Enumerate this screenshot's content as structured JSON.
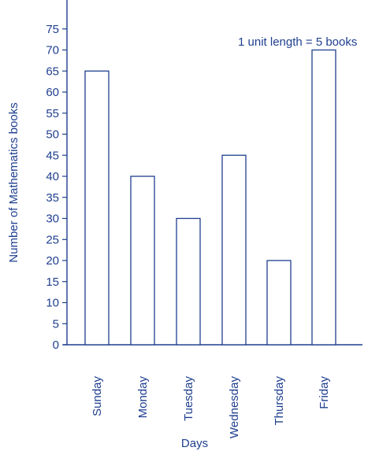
{
  "chart_data": {
    "type": "bar",
    "categories": [
      "Sunday",
      "Monday",
      "Tuesday",
      "Wednesday",
      "Thursday",
      "Friday"
    ],
    "values": [
      65,
      40,
      30,
      45,
      20,
      70
    ],
    "xlabel": "Days",
    "ylabel": "Number of Mathematics books",
    "yticks": [
      0,
      5,
      10,
      15,
      20,
      25,
      30,
      35,
      40,
      45,
      50,
      55,
      60,
      65,
      70,
      75
    ],
    "ylim": [
      0,
      80
    ],
    "annotation": "1 unit length = 5 books",
    "grid": false,
    "colors": {
      "ink": "#1f3f8f",
      "bar_fill": "#ffffff"
    }
  }
}
